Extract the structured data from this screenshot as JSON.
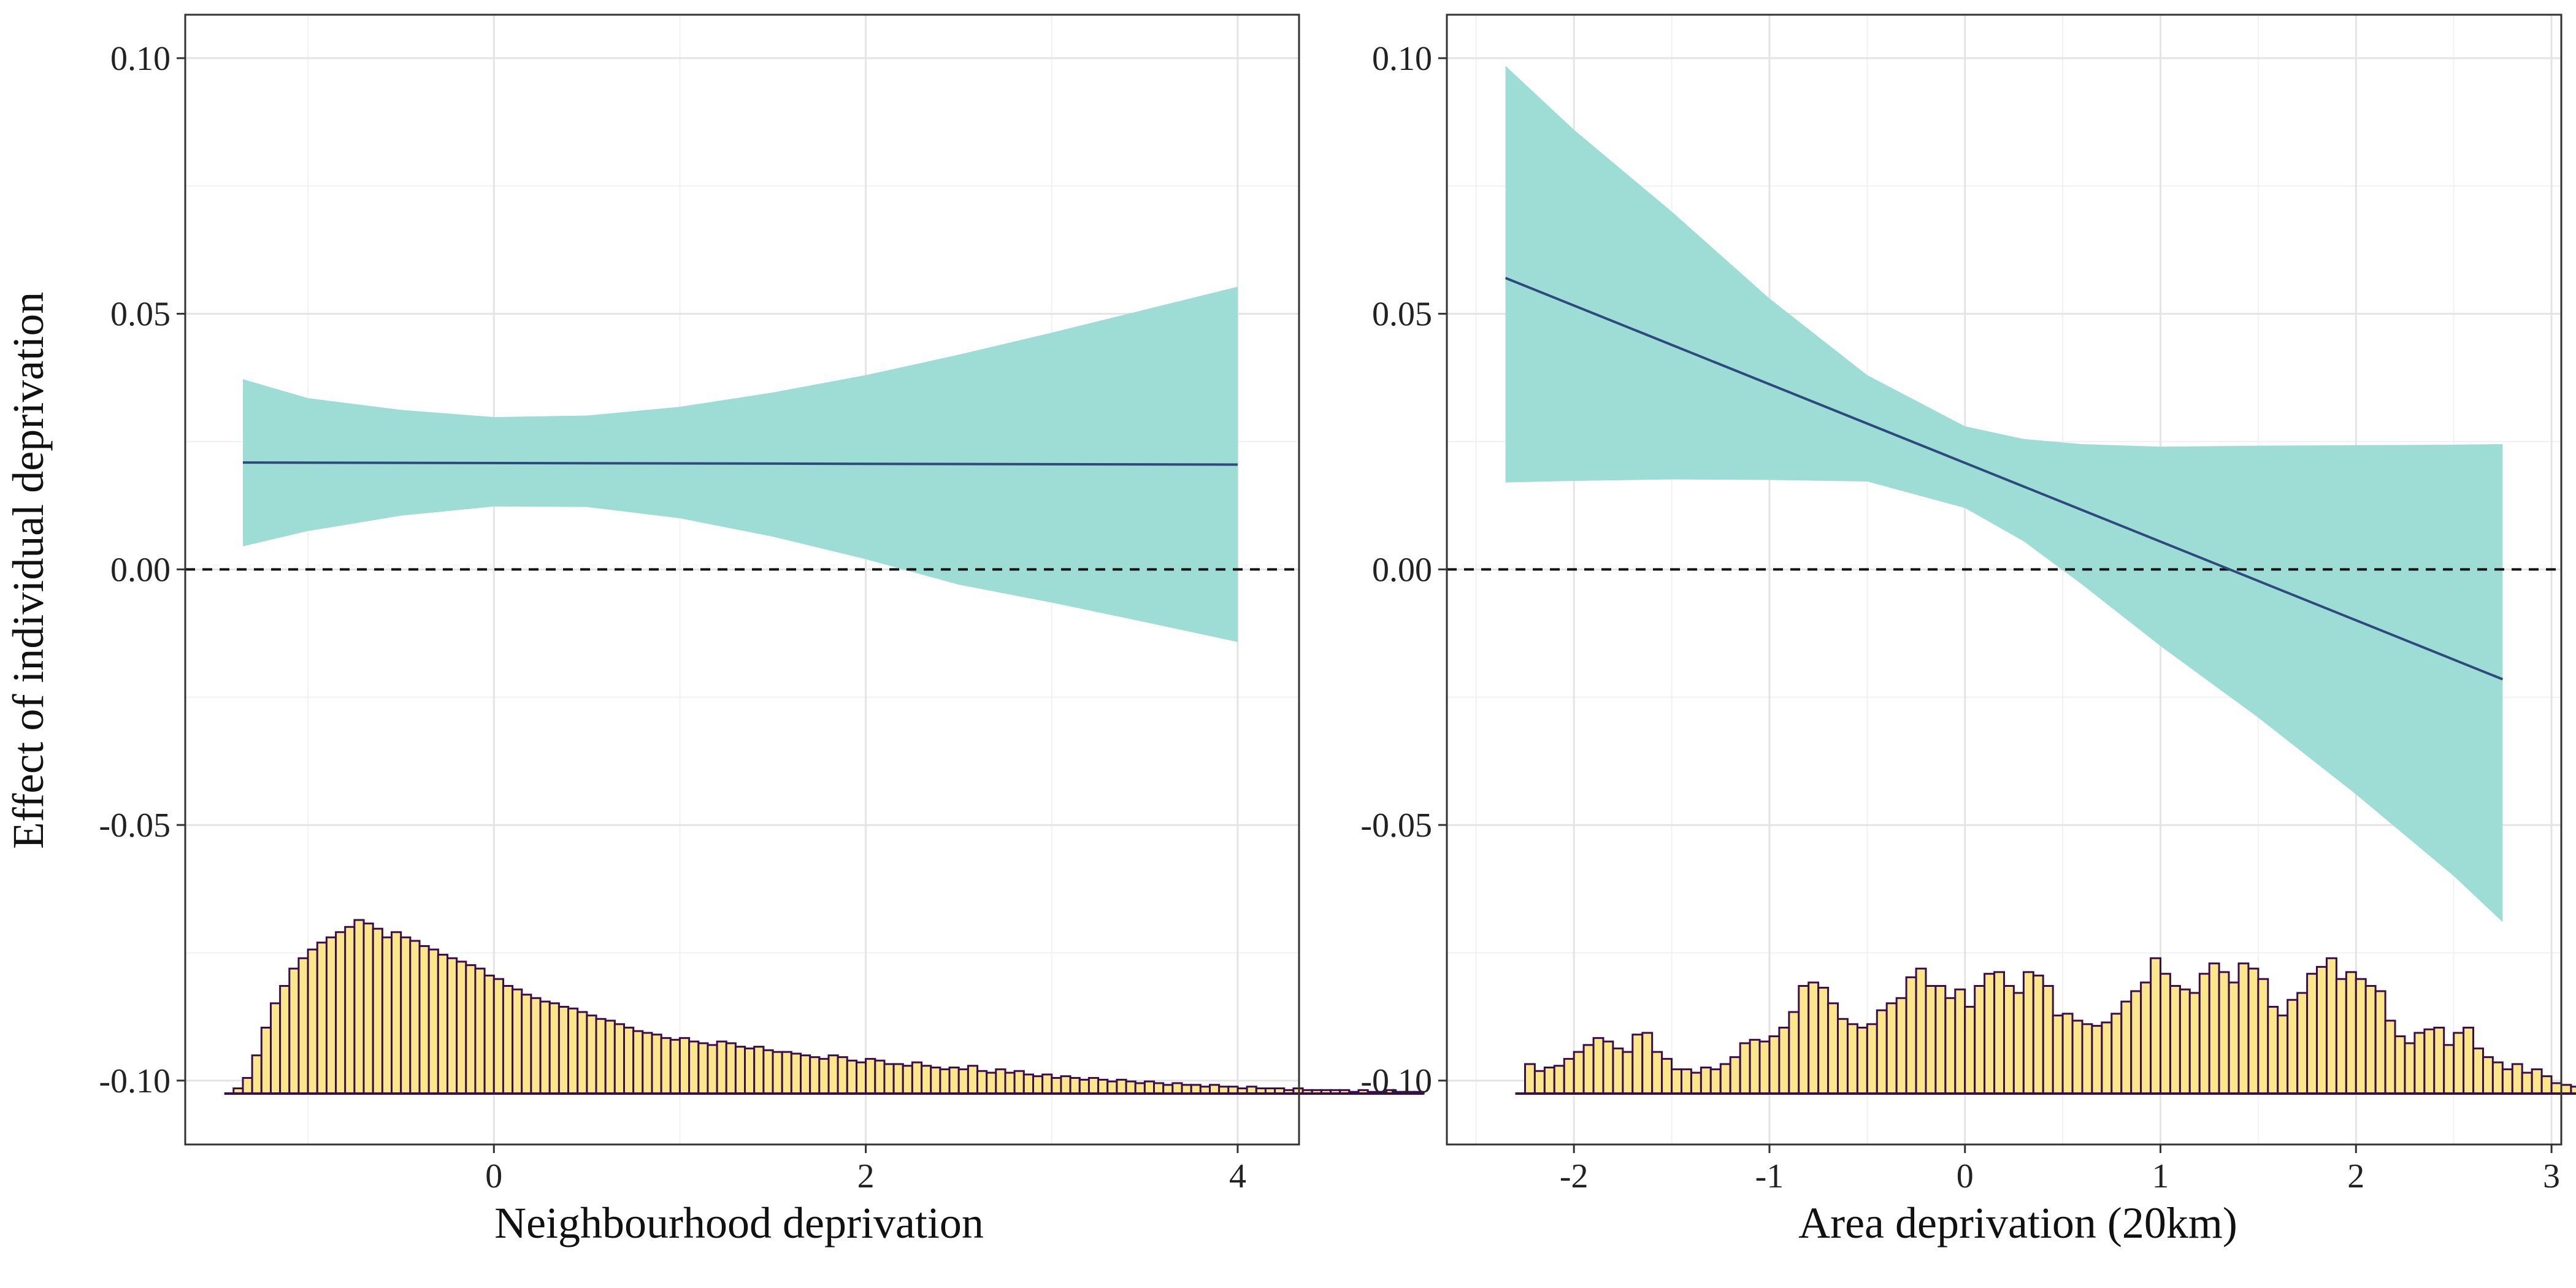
{
  "chart_data": [
    {
      "type": "line",
      "xlabel": "Neighbourhood deprivation",
      "ylabel": "Effect of individual deprivation",
      "xlim": [
        -1.66,
        4.33
      ],
      "ylim": [
        -0.1125,
        0.1085
      ],
      "x_ticks": [
        0,
        2,
        4
      ],
      "x_tick_labels": [
        "0",
        "2",
        "4"
      ],
      "y_ticks": [
        -0.1,
        -0.05,
        0.0,
        0.05,
        0.1
      ],
      "y_tick_labels": [
        "-0.10",
        "-0.05",
        "0.00",
        "0.05",
        "0.10"
      ],
      "grid": true,
      "reference_line": {
        "y": 0,
        "style": "dashed"
      },
      "colors": {
        "band": "#9edcd6",
        "line": "#2e4a7d",
        "hist_fill": "#fbe78a",
        "hist_stroke": "#3a0e4e",
        "reference": "#111111"
      },
      "series": [
        {
          "kind": "line",
          "x": [
            -1.35,
            4.0
          ],
          "y": [
            0.0209,
            0.0205
          ]
        },
        {
          "kind": "band",
          "x": [
            -1.35,
            -1.0,
            -0.5,
            0.0,
            0.5,
            1.0,
            1.5,
            2.0,
            2.5,
            3.0,
            3.5,
            4.0
          ],
          "lower": [
            0.0045,
            0.0075,
            0.0105,
            0.0123,
            0.0122,
            0.01,
            0.0064,
            0.002,
            -0.003,
            -0.0065,
            -0.0103,
            -0.0142
          ],
          "upper": [
            0.0372,
            0.0335,
            0.0312,
            0.0298,
            0.0301,
            0.0318,
            0.0346,
            0.038,
            0.042,
            0.0463,
            0.0508,
            0.0553
          ]
        }
      ],
      "histogram": {
        "x_start": -1.4,
        "bin_width": 0.05,
        "counts": [
          0.03,
          0.09,
          0.22,
          0.38,
          0.52,
          0.62,
          0.72,
          0.78,
          0.83,
          0.87,
          0.9,
          0.93,
          0.96,
          1.0,
          0.98,
          0.95,
          0.9,
          0.93,
          0.9,
          0.88,
          0.85,
          0.83,
          0.8,
          0.78,
          0.76,
          0.74,
          0.72,
          0.68,
          0.66,
          0.62,
          0.6,
          0.57,
          0.55,
          0.53,
          0.52,
          0.5,
          0.49,
          0.47,
          0.45,
          0.43,
          0.42,
          0.4,
          0.38,
          0.36,
          0.35,
          0.34,
          0.32,
          0.31,
          0.32,
          0.3,
          0.29,
          0.28,
          0.3,
          0.29,
          0.27,
          0.26,
          0.27,
          0.25,
          0.24,
          0.24,
          0.23,
          0.22,
          0.21,
          0.2,
          0.22,
          0.21,
          0.19,
          0.18,
          0.2,
          0.19,
          0.17,
          0.17,
          0.16,
          0.18,
          0.16,
          0.15,
          0.14,
          0.15,
          0.14,
          0.16,
          0.13,
          0.12,
          0.14,
          0.12,
          0.13,
          0.11,
          0.1,
          0.11,
          0.09,
          0.1,
          0.09,
          0.08,
          0.09,
          0.08,
          0.07,
          0.08,
          0.07,
          0.06,
          0.07,
          0.06,
          0.05,
          0.06,
          0.05,
          0.05,
          0.04,
          0.05,
          0.04,
          0.04,
          0.03,
          0.04,
          0.03,
          0.03,
          0.03,
          0.02,
          0.03,
          0.02,
          0.02,
          0.02,
          0.02,
          0.02,
          0.01,
          0.02,
          0.01,
          0.01,
          0.02,
          0.01,
          0.01,
          0.01
        ]
      }
    },
    {
      "type": "line",
      "xlabel": "Area deprivation (20km)",
      "ylabel": "",
      "xlim": [
        -2.65,
        3.05
      ],
      "ylim": [
        -0.1125,
        0.1085
      ],
      "x_ticks": [
        -2,
        -1,
        0,
        1,
        2,
        3
      ],
      "x_tick_labels": [
        "-2",
        "-1",
        "0",
        "1",
        "2",
        "3"
      ],
      "y_ticks": [
        -0.1,
        -0.05,
        0.0,
        0.05,
        0.1
      ],
      "y_tick_labels": [
        "-0.10",
        "-0.05",
        "0.00",
        "0.05",
        "0.10"
      ],
      "grid": true,
      "reference_line": {
        "y": 0,
        "style": "dashed"
      },
      "colors": {
        "band": "#9edcd6",
        "line": "#2e4a7d",
        "hist_fill": "#fbe78a",
        "hist_stroke": "#3a0e4e",
        "reference": "#111111"
      },
      "series": [
        {
          "kind": "line",
          "x": [
            -2.35,
            2.75
          ],
          "y": [
            0.057,
            -0.0215
          ]
        },
        {
          "kind": "band",
          "x": [
            -2.35,
            -2.0,
            -1.5,
            -1.0,
            -0.5,
            0.0,
            0.3,
            0.6,
            1.0,
            1.5,
            2.0,
            2.5,
            2.75
          ],
          "lower": [
            0.017,
            0.0173,
            0.0176,
            0.0175,
            0.0172,
            0.012,
            0.0055,
            -0.003,
            -0.015,
            -0.029,
            -0.044,
            -0.06,
            -0.069
          ],
          "upper": [
            0.0985,
            0.086,
            0.07,
            0.053,
            0.038,
            0.028,
            0.0255,
            0.0245,
            0.024,
            0.0242,
            0.0243,
            0.0244,
            0.0245
          ]
        }
      ],
      "histogram": {
        "x_start": -2.25,
        "bin_width": 0.05,
        "counts": [
          0.17,
          0.13,
          0.15,
          0.16,
          0.2,
          0.24,
          0.28,
          0.32,
          0.3,
          0.26,
          0.24,
          0.34,
          0.35,
          0.24,
          0.2,
          0.14,
          0.14,
          0.12,
          0.15,
          0.14,
          0.17,
          0.21,
          0.29,
          0.31,
          0.3,
          0.33,
          0.38,
          0.47,
          0.62,
          0.64,
          0.61,
          0.52,
          0.43,
          0.4,
          0.38,
          0.4,
          0.48,
          0.52,
          0.55,
          0.67,
          0.72,
          0.62,
          0.62,
          0.55,
          0.6,
          0.5,
          0.62,
          0.69,
          0.7,
          0.62,
          0.58,
          0.7,
          0.68,
          0.62,
          0.45,
          0.46,
          0.42,
          0.4,
          0.39,
          0.41,
          0.46,
          0.53,
          0.59,
          0.64,
          0.78,
          0.69,
          0.62,
          0.6,
          0.58,
          0.69,
          0.75,
          0.7,
          0.64,
          0.75,
          0.72,
          0.66,
          0.5,
          0.45,
          0.54,
          0.58,
          0.69,
          0.73,
          0.78,
          0.66,
          0.7,
          0.66,
          0.62,
          0.59,
          0.42,
          0.33,
          0.29,
          0.35,
          0.37,
          0.38,
          0.28,
          0.35,
          0.38,
          0.26,
          0.21,
          0.18,
          0.14,
          0.17,
          0.12,
          0.14,
          0.1,
          0.06,
          0.05,
          0.04,
          0.05,
          0.03,
          0.02,
          0.01
        ]
      }
    }
  ]
}
